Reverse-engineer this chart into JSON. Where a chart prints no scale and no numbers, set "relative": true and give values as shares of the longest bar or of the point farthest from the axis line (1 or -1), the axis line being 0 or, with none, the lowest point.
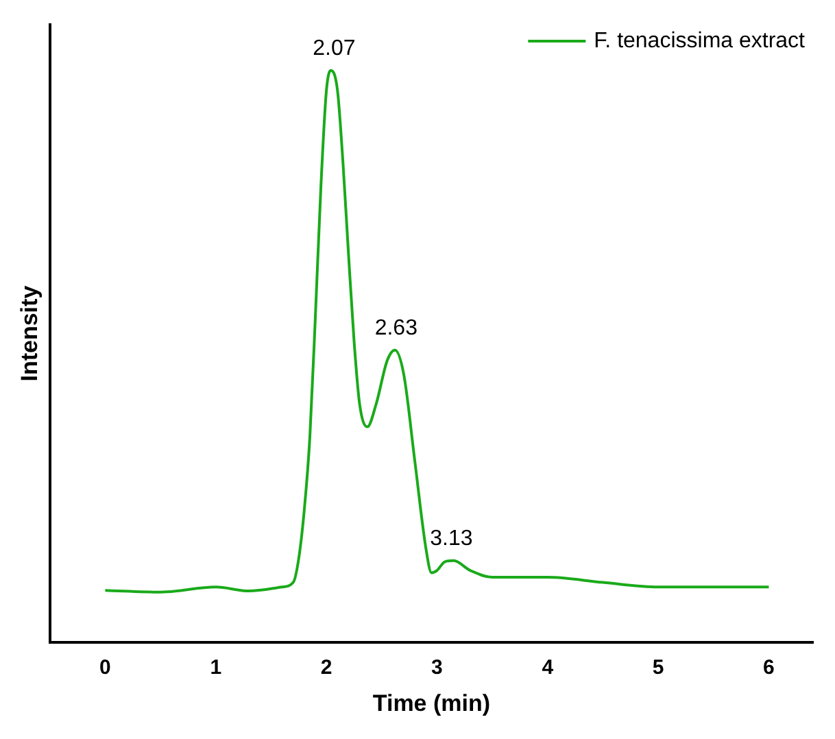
{
  "chart_data": {
    "type": "line",
    "relative": true,
    "xlabel": "Time (min)",
    "ylabel": "Intensity",
    "xlim": [
      -0.5,
      6.4
    ],
    "xticks": [
      0,
      1,
      2,
      3,
      4,
      5,
      6
    ],
    "grid": false,
    "legend": "top right",
    "marker": "none",
    "line_style": "solid",
    "x": [
      0,
      0.5,
      1,
      1.3,
      1.6,
      1.7,
      1.75,
      1.8,
      1.85,
      1.9,
      1.95,
      2.0,
      2.04,
      2.1,
      2.15,
      2.2,
      2.25,
      2.3,
      2.37,
      2.45,
      2.55,
      2.62,
      2.7,
      2.8,
      2.9,
      2.95,
      3.0,
      3.07,
      3.15,
      3.3,
      3.5,
      4.0,
      4.5,
      5.0,
      6.0
    ],
    "series": [
      {
        "name": "F. tenacissima extract",
        "color": "#1aaa1a",
        "values": [
          0.091,
          0.088,
          0.097,
          0.09,
          0.097,
          0.105,
          0.147,
          0.232,
          0.358,
          0.569,
          0.796,
          0.965,
          1.0,
          0.965,
          0.838,
          0.678,
          0.527,
          0.417,
          0.377,
          0.417,
          0.493,
          0.511,
          0.468,
          0.316,
          0.164,
          0.122,
          0.126,
          0.141,
          0.143,
          0.126,
          0.114,
          0.114,
          0.105,
          0.097,
          0.097
        ]
      }
    ],
    "annotations": [
      {
        "text": "2.07",
        "x": 2.07,
        "y": 1.0
      },
      {
        "text": "2.63",
        "x": 2.63,
        "y": 0.511
      },
      {
        "text": "3.13",
        "x": 3.13,
        "y": 0.143
      }
    ]
  }
}
